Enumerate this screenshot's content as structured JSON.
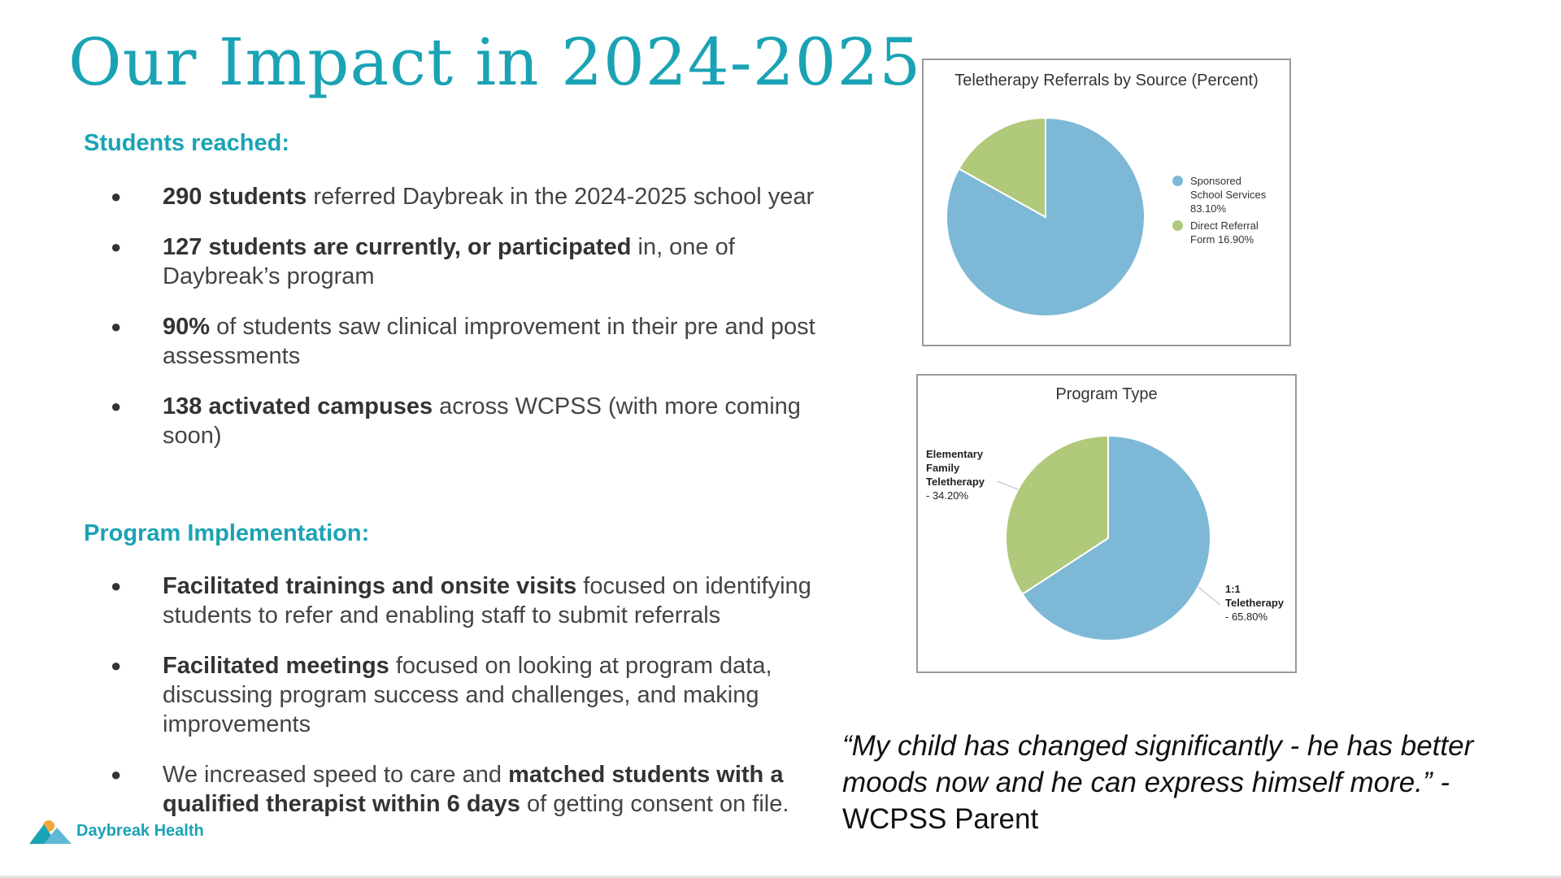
{
  "slide": {
    "title": "Our Impact in 2024-2025"
  },
  "students_reached": {
    "heading": "Students reached:",
    "bullets": [
      {
        "bold": "290 students",
        "rest": " referred Daybreak in the 2024-2025 school year"
      },
      {
        "bold": "127 students are currently, or participated",
        "rest": " in, one of Daybreak’s program"
      },
      {
        "bold": "90%",
        "rest": " of students saw clinical improvement in their pre and post assessments"
      },
      {
        "bold": "138 activated campuses",
        "rest": " across WCPSS (with more coming soon)"
      }
    ]
  },
  "program_implementation": {
    "heading": "Program Implementation:",
    "bullets": [
      {
        "bold": "Facilitated trainings and onsite visits",
        "rest": " focused on identifying students to refer and enabling staff to submit referrals"
      },
      {
        "bold": "Facilitated meetings",
        "rest": " focused on looking at program data, discussing program success and challenges, and making improvements"
      },
      {
        "pre": "We increased speed to care and ",
        "bold": "matched students with a qualified therapist within 6 days",
        "rest": " of getting consent on file."
      }
    ]
  },
  "chart_data": [
    {
      "type": "pie",
      "title": "Teletherapy Referrals by Source (Percent)",
      "legend_position": "right",
      "slices": [
        {
          "label": "Sponsored School Services",
          "display": "Sponsored School Services 83.10%",
          "value": 83.1,
          "color": "#7db9d6"
        },
        {
          "label": "Direct Referral Form",
          "display": "Direct Referral Form 16.90%",
          "value": 16.9,
          "color": "#b0c97a"
        }
      ]
    },
    {
      "type": "pie",
      "title": "Program Type",
      "legend_position": "none",
      "slices": [
        {
          "label": "1:1 Teletherapy",
          "pct_text": "- 65.80%",
          "value": 65.8,
          "color": "#7db9d6"
        },
        {
          "label": "Elementary Family Teletherapy",
          "pct_text": "- 34.20%",
          "value": 34.2,
          "color": "#b0c97a"
        }
      ]
    }
  ],
  "quote": {
    "text": "“My child has changed significantly - he has better moods now and he can express himself more.” -",
    "attribution": "WCPSS Parent"
  },
  "logo": {
    "text": "Daybreak Health",
    "icon": "mountain-sun-icon"
  },
  "colors": {
    "accent": "#1aa3b4",
    "pie_blue": "#7db9d6",
    "pie_green": "#b0c97a"
  }
}
